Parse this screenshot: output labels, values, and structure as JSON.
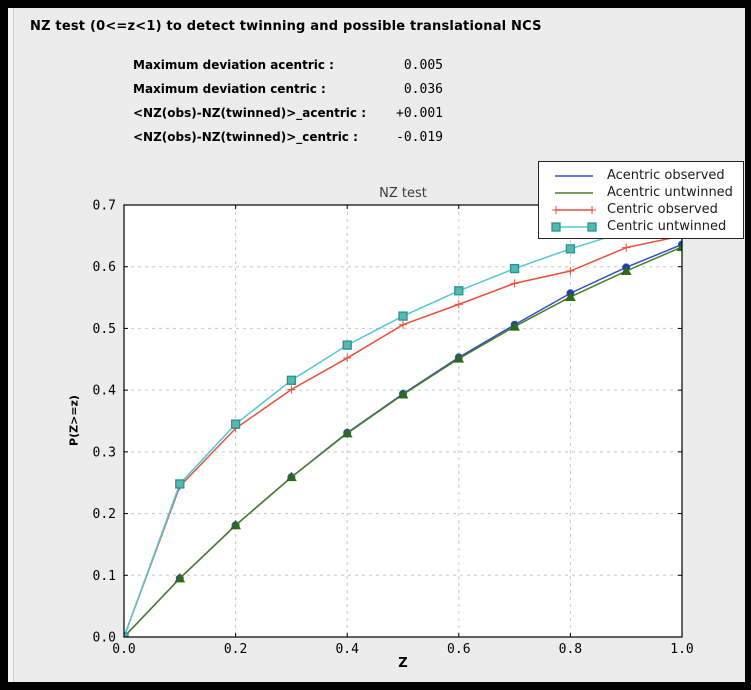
{
  "panel": {
    "report_title": "NZ test (0<=z<1) to detect twinning and possible translational NCS",
    "stats": [
      {
        "label": "Maximum deviation acentric :",
        "value": "0.005"
      },
      {
        "label": "Maximum deviation centric :",
        "value": "0.036"
      },
      {
        "label": "<NZ(obs)-NZ(twinned)>_acentric :",
        "value": "+0.001"
      },
      {
        "label": "<NZ(obs)-NZ(twinned)>_centric :",
        "value": "-0.019"
      }
    ]
  },
  "chart_data": {
    "type": "line",
    "title": "NZ test",
    "xlabel": "Z",
    "ylabel": "P(Z>=z)",
    "xlim": [
      0.0,
      1.0
    ],
    "ylim": [
      0.0,
      0.7
    ],
    "xticks": [
      0.0,
      0.2,
      0.4,
      0.6,
      0.8,
      1.0
    ],
    "yticks": [
      0.0,
      0.1,
      0.2,
      0.3,
      0.4,
      0.5,
      0.6,
      0.7
    ],
    "grid": true,
    "grid_style": "dashed",
    "legend_position": "upper right",
    "x": [
      0.0,
      0.1,
      0.2,
      0.3,
      0.4,
      0.5,
      0.6,
      0.7,
      0.8,
      0.9,
      1.0
    ],
    "series": [
      {
        "name": "Acentric observed",
        "color": "#2e4fd2",
        "marker": "circle",
        "marker_fill": "#2236b4",
        "values": [
          0.0,
          0.095,
          0.181,
          0.259,
          0.331,
          0.394,
          0.453,
          0.506,
          0.557,
          0.599,
          0.636
        ]
      },
      {
        "name": "Acentric untwinned",
        "color": "#4a7e22",
        "marker": "triangle",
        "marker_fill": "#2f6b16",
        "values": [
          0.0,
          0.095,
          0.181,
          0.259,
          0.33,
          0.393,
          0.451,
          0.503,
          0.551,
          0.593,
          0.632
        ]
      },
      {
        "name": "Centric observed",
        "color": "#e94f3a",
        "marker": "plus",
        "values": [
          0.0,
          0.244,
          0.338,
          0.401,
          0.452,
          0.506,
          0.539,
          0.573,
          0.593,
          0.631,
          0.65
        ]
      },
      {
        "name": "Centric untwinned",
        "color": "#54c7d6",
        "marker": "square",
        "marker_fill": "#56b8b0",
        "marker_edge": "#2d8f8f",
        "values": [
          0.0,
          0.248,
          0.345,
          0.416,
          0.473,
          0.52,
          0.561,
          0.597,
          0.629,
          0.657,
          0.683
        ]
      }
    ],
    "colors": {
      "grid": "#c8c8c8",
      "axes_border": "#000000",
      "plot_bg": "#ffffff",
      "panel_bg": "#ececec"
    }
  }
}
